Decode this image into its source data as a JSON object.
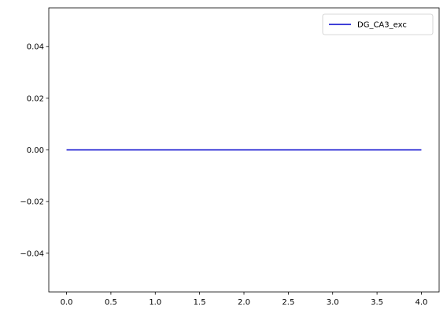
{
  "chart_data": {
    "type": "line",
    "title": "",
    "xlabel": "",
    "ylabel": "",
    "xlim": [
      -0.2,
      4.2
    ],
    "ylim": [
      -0.055,
      0.055
    ],
    "x_ticks": [
      0.0,
      0.5,
      1.0,
      1.5,
      2.0,
      2.5,
      3.0,
      3.5,
      4.0
    ],
    "x_tick_labels": [
      "0.0",
      "0.5",
      "1.0",
      "1.5",
      "2.0",
      "2.5",
      "3.0",
      "3.5",
      "4.0"
    ],
    "y_ticks": [
      0.04,
      0.02,
      0.0,
      -0.02,
      -0.04
    ],
    "y_tick_labels": [
      "0.04",
      "0.02",
      "0.00",
      "−0.02",
      "−0.04"
    ],
    "grid": false,
    "legend_position": "top-right",
    "series": [
      {
        "name": "DG_CA3_exc",
        "color": "#0000cc",
        "x": [
          0.0,
          0.5,
          1.0,
          1.5,
          2.0,
          2.5,
          3.0,
          3.5,
          4.0
        ],
        "y": [
          0.0,
          0.0,
          0.0,
          0.0,
          0.0,
          0.0,
          0.0,
          0.0,
          0.0
        ]
      }
    ]
  }
}
